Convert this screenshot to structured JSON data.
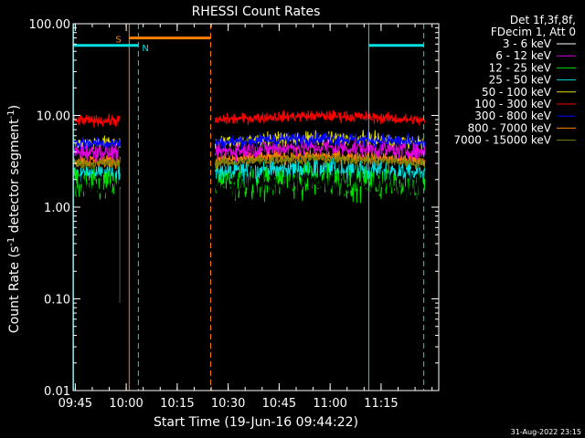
{
  "chart_data": {
    "type": "line",
    "title": "RHESSI Count Rates",
    "xlabel": "Start Time (19-Jun-16 09:44:22)",
    "ylabel_main": "Count Rate (s",
    "ylabel_sup1": "-1",
    "ylabel_mid": " detector segment",
    "ylabel_sup2": "-1",
    "ylabel_end": ")",
    "y_scale": "log",
    "ylim": [
      0.01,
      100
    ],
    "xlim_minutes": [
      0,
      107.6
    ],
    "x_ticks": [
      {
        "label": "09:45",
        "t": 0.63
      },
      {
        "label": "10:00",
        "t": 15.63
      },
      {
        "label": "10:15",
        "t": 30.63
      },
      {
        "label": "10:30",
        "t": 45.63
      },
      {
        "label": "10:45",
        "t": 60.63
      },
      {
        "label": "11:00",
        "t": 75.63
      },
      {
        "label": "11:15",
        "t": 90.63
      }
    ],
    "y_ticks": [
      {
        "label": "100.00",
        "v": 100
      },
      {
        "label": "10.00",
        "v": 10
      },
      {
        "label": "1.00",
        "v": 1
      },
      {
        "label": "0.10",
        "v": 0.1
      },
      {
        "label": "0.01",
        "v": 0.01
      }
    ],
    "legend_header": [
      "Det 1f,3f,8f,",
      "FDecim 1, Att 0"
    ],
    "segments": [
      [
        0,
        13.8
      ],
      [
        41.8,
        103.5
      ]
    ],
    "series": [
      {
        "name": "3 - 6 keV",
        "color": "#000000",
        "level": 1.6,
        "spread": 0.16
      },
      {
        "name": "6 - 12 keV",
        "color": "#e000e0",
        "level": 4.0,
        "spread": 0.08
      },
      {
        "name": "12 - 25 keV",
        "color": "#00e000",
        "level": 1.7,
        "spread": 0.15
      },
      {
        "name": "25 - 50 keV",
        "color": "#00e0e0",
        "level": 2.3,
        "spread": 0.1
      },
      {
        "name": "50 - 100 keV",
        "color": "#e0e000",
        "level": 5.0,
        "spread": 0.06
      },
      {
        "name": "100 - 300 keV",
        "color": "#ff0000",
        "level": 8.8,
        "spread": 0.05
      },
      {
        "name": "300 - 800 keV",
        "color": "#0000ff",
        "level": 5.0,
        "spread": 0.06
      },
      {
        "name": "800 - 7000 keV",
        "color": "#ff8000",
        "level": 3.2,
        "spread": 0.06
      },
      {
        "name": "7000 - 15000 keV",
        "color": "#808000",
        "level": 3.0,
        "spread": 0.05
      }
    ],
    "spike": {
      "t": 13.6,
      "low": 0.09
    },
    "annotations": {
      "saa_label": "S",
      "saa_color": "#ff8000",
      "saa_start": 16.5,
      "saa_end": 40.5,
      "saa_level": 70,
      "night_label": "N",
      "night_color": "#00e0e0",
      "night_segments": [
        [
          0.1,
          19.2
        ],
        [
          87.0,
          103.2
        ]
      ],
      "night_level": 58,
      "solid_lines": [
        {
          "t": 0.1,
          "color": "#00e0e0"
        },
        {
          "t": 16.5,
          "color": "#ff8000"
        },
        {
          "t": 87.0,
          "color": "#00e0e0"
        }
      ],
      "dashed_lines": [
        {
          "t": 19.2,
          "color": "#00e0e0"
        },
        {
          "t": 40.5,
          "color": "#ff8000"
        },
        {
          "t": 103.2,
          "color": "#00e0e0"
        }
      ]
    },
    "timestamp": "31-Aug-2022 23:15"
  }
}
